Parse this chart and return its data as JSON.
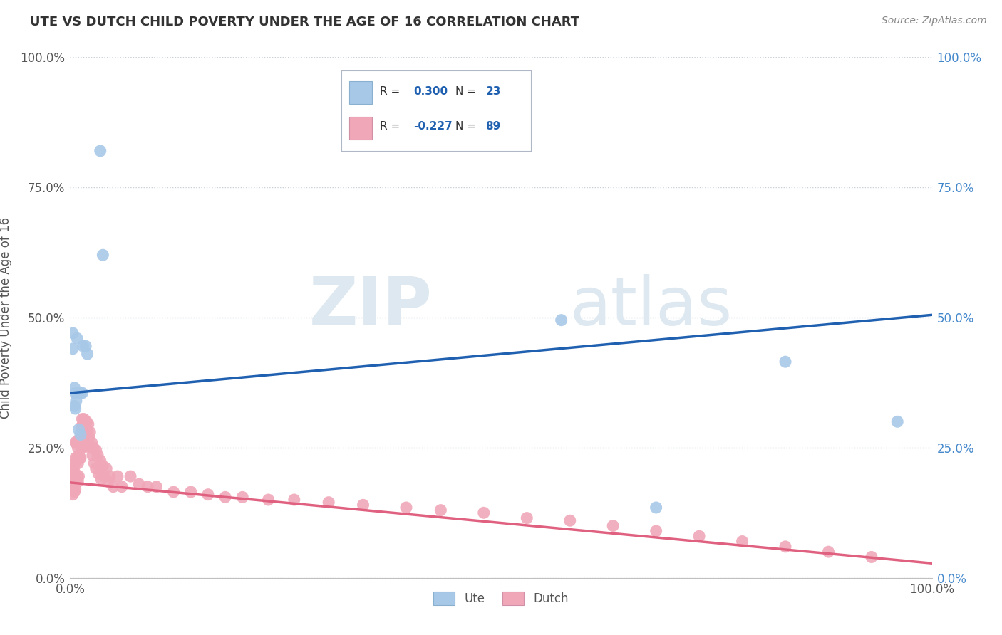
{
  "title": "UTE VS DUTCH CHILD POVERTY UNDER THE AGE OF 16 CORRELATION CHART",
  "source": "Source: ZipAtlas.com",
  "ylabel": "Child Poverty Under the Age of 16",
  "xlabel": "",
  "xlim": [
    0.0,
    1.0
  ],
  "ylim": [
    0.0,
    1.0
  ],
  "xtick_labels": [
    "0.0%",
    "100.0%"
  ],
  "ytick_labels": [
    "0.0%",
    "25.0%",
    "50.0%",
    "75.0%",
    "100.0%"
  ],
  "ytick_values": [
    0.0,
    0.25,
    0.5,
    0.75,
    1.0
  ],
  "grid_color": "#c8d0d8",
  "background_color": "#ffffff",
  "watermark_zip": "ZIP",
  "watermark_atlas": "atlas",
  "ute_color": "#a8c8e8",
  "dutch_color": "#f0a8b8",
  "ute_line_color": "#2060b0",
  "dutch_line_color": "#e06080",
  "ute_R": 0.3,
  "ute_N": 23,
  "dutch_R": -0.227,
  "dutch_N": 89,
  "legend_ute_label": "Ute",
  "legend_dutch_label": "Dutch",
  "ute_line_start_y": 0.355,
  "ute_line_end_y": 0.505,
  "dutch_line_start_y": 0.183,
  "dutch_line_end_y": 0.028,
  "ute_x": [
    0.003,
    0.003,
    0.005,
    0.005,
    0.006,
    0.006,
    0.007,
    0.008,
    0.008,
    0.01,
    0.01,
    0.012,
    0.012,
    0.014,
    0.015,
    0.018,
    0.02,
    0.035,
    0.038,
    0.57,
    0.68,
    0.83,
    0.96
  ],
  "ute_y": [
    0.47,
    0.44,
    0.365,
    0.33,
    0.355,
    0.325,
    0.34,
    0.355,
    0.46,
    0.355,
    0.285,
    0.355,
    0.275,
    0.355,
    0.445,
    0.445,
    0.43,
    0.82,
    0.62,
    0.495,
    0.135,
    0.415,
    0.3
  ],
  "dutch_x": [
    0.002,
    0.002,
    0.003,
    0.003,
    0.003,
    0.004,
    0.004,
    0.005,
    0.005,
    0.005,
    0.006,
    0.006,
    0.006,
    0.006,
    0.007,
    0.007,
    0.007,
    0.008,
    0.008,
    0.008,
    0.009,
    0.009,
    0.009,
    0.01,
    0.01,
    0.01,
    0.011,
    0.011,
    0.012,
    0.012,
    0.013,
    0.013,
    0.014,
    0.014,
    0.015,
    0.015,
    0.016,
    0.016,
    0.017,
    0.018,
    0.019,
    0.02,
    0.021,
    0.022,
    0.023,
    0.024,
    0.025,
    0.026,
    0.027,
    0.028,
    0.03,
    0.03,
    0.032,
    0.033,
    0.035,
    0.036,
    0.038,
    0.04,
    0.042,
    0.044,
    0.046,
    0.05,
    0.055,
    0.06,
    0.07,
    0.08,
    0.09,
    0.1,
    0.12,
    0.14,
    0.16,
    0.18,
    0.2,
    0.23,
    0.26,
    0.3,
    0.34,
    0.39,
    0.43,
    0.48,
    0.53,
    0.58,
    0.63,
    0.68,
    0.73,
    0.78,
    0.83,
    0.88,
    0.93
  ],
  "dutch_y": [
    0.195,
    0.17,
    0.205,
    0.185,
    0.16,
    0.21,
    0.185,
    0.22,
    0.195,
    0.165,
    0.26,
    0.23,
    0.2,
    0.17,
    0.26,
    0.225,
    0.19,
    0.26,
    0.23,
    0.195,
    0.25,
    0.22,
    0.185,
    0.265,
    0.235,
    0.195,
    0.265,
    0.23,
    0.27,
    0.23,
    0.29,
    0.25,
    0.305,
    0.26,
    0.295,
    0.25,
    0.305,
    0.26,
    0.285,
    0.27,
    0.3,
    0.28,
    0.295,
    0.27,
    0.28,
    0.25,
    0.26,
    0.235,
    0.25,
    0.22,
    0.245,
    0.21,
    0.235,
    0.2,
    0.225,
    0.19,
    0.215,
    0.195,
    0.21,
    0.185,
    0.195,
    0.175,
    0.195,
    0.175,
    0.195,
    0.18,
    0.175,
    0.175,
    0.165,
    0.165,
    0.16,
    0.155,
    0.155,
    0.15,
    0.15,
    0.145,
    0.14,
    0.135,
    0.13,
    0.125,
    0.115,
    0.11,
    0.1,
    0.09,
    0.08,
    0.07,
    0.06,
    0.05,
    0.04
  ]
}
